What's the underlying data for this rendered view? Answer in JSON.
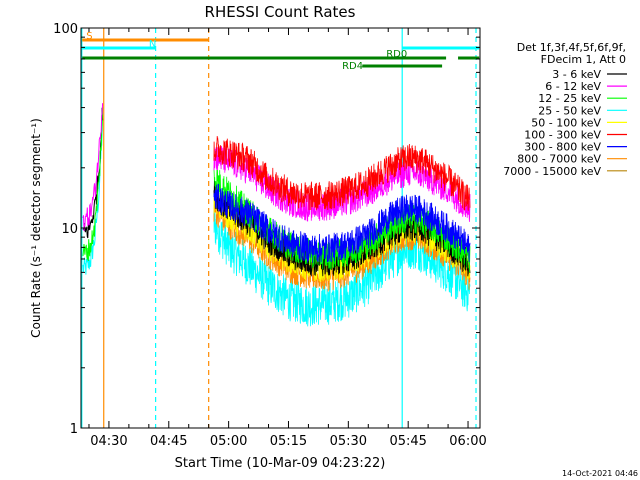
{
  "chart_data": {
    "type": "line",
    "title": "RHESSI Count Rates",
    "ylabel": "Count Rate (s⁻¹ detector segment⁻¹)",
    "xlabel": "Start Time (10-Mar-09 04:23:22)",
    "yscale": "log",
    "ylim": [
      1,
      100
    ],
    "xlim_minutes": [
      263,
      363
    ],
    "x_ticks": [
      {
        "t": 270,
        "label": "04:30"
      },
      {
        "t": 285,
        "label": "04:45"
      },
      {
        "t": 300,
        "label": "05:00"
      },
      {
        "t": 315,
        "label": "05:15"
      },
      {
        "t": 330,
        "label": "05:30"
      },
      {
        "t": 345,
        "label": "05:45"
      },
      {
        "t": 360,
        "label": "06:00"
      }
    ],
    "y_ticks": [
      {
        "v": 1,
        "label": "1"
      },
      {
        "v": 10,
        "label": "10"
      },
      {
        "v": 100,
        "label": "100"
      }
    ],
    "legend_header": [
      "Det 1f,3f,4f,5f,6f,9f,",
      "FDecim 1, Att 0"
    ],
    "legend_placement": "right",
    "series": [
      {
        "name": "3 - 6 keV",
        "color": "#000000",
        "pre": [
          [
            263.5,
            9.5
          ],
          [
            264.5,
            9.6
          ],
          [
            265.5,
            10.5
          ],
          [
            266.5,
            13
          ],
          [
            267.5,
            19
          ],
          [
            268.5,
            42
          ]
        ],
        "curve": [
          [
            296.3,
            15
          ],
          [
            300,
            12.5
          ],
          [
            305,
            10.8
          ],
          [
            310,
            8.8
          ],
          [
            315,
            7.4
          ],
          [
            320,
            6.8
          ],
          [
            325,
            6.7
          ],
          [
            330,
            7.0
          ],
          [
            335,
            7.8
          ],
          [
            340,
            9.2
          ],
          [
            343,
            9.9
          ],
          [
            345,
            10.2
          ],
          [
            348,
            10.1
          ],
          [
            350,
            9.6
          ],
          [
            355,
            8.3
          ],
          [
            359,
            7.0
          ],
          [
            360.5,
            6.5
          ]
        ]
      },
      {
        "name": "6 - 12 keV",
        "color": "#ff00ff",
        "pre": [
          [
            263.5,
            11
          ],
          [
            264.5,
            11.2
          ],
          [
            265.5,
            12.2
          ],
          [
            266.5,
            15.5
          ],
          [
            267.5,
            24
          ],
          [
            268.5,
            46
          ]
        ],
        "curve": [
          [
            296.3,
            23
          ],
          [
            300,
            21.5
          ],
          [
            305,
            19.5
          ],
          [
            310,
            15.8
          ],
          [
            315,
            13.6
          ],
          [
            320,
            12.7
          ],
          [
            325,
            12.9
          ],
          [
            330,
            13.6
          ],
          [
            335,
            15.0
          ],
          [
            340,
            17.4
          ],
          [
            343,
            18.5
          ],
          [
            345,
            19.0
          ],
          [
            348,
            18.7
          ],
          [
            350,
            17.8
          ],
          [
            355,
            15.5
          ],
          [
            359,
            13.2
          ],
          [
            360.5,
            12.5
          ]
        ]
      },
      {
        "name": "12 - 25 keV",
        "color": "#00ff00",
        "pre": [
          [
            263.5,
            7.5
          ],
          [
            264.5,
            7.6
          ],
          [
            265.5,
            8.3
          ],
          [
            266.5,
            10.5
          ],
          [
            267.5,
            17
          ],
          [
            268.5,
            40
          ]
        ],
        "curve": [
          [
            296.3,
            18
          ],
          [
            300,
            15
          ],
          [
            305,
            12
          ],
          [
            310,
            9.8
          ],
          [
            315,
            8.2
          ],
          [
            320,
            7.5
          ],
          [
            325,
            7.3
          ],
          [
            330,
            7.6
          ],
          [
            335,
            8.4
          ],
          [
            340,
            10.0
          ],
          [
            343,
            10.8
          ],
          [
            345,
            11.2
          ],
          [
            348,
            11.0
          ],
          [
            350,
            10.4
          ],
          [
            355,
            8.9
          ],
          [
            359,
            7.6
          ],
          [
            360.5,
            7.0
          ]
        ]
      },
      {
        "name": "25 - 50 keV",
        "color": "#00ffff",
        "pre": [
          [
            263.5,
            6.3
          ],
          [
            264.5,
            6.4
          ],
          [
            265.5,
            7.0
          ],
          [
            266.5,
            9.0
          ],
          [
            267.5,
            15
          ],
          [
            268.5,
            37
          ]
        ],
        "curve": [
          [
            296.3,
            10.5
          ],
          [
            300,
            8.0
          ],
          [
            305,
            6.5
          ],
          [
            310,
            5.2
          ],
          [
            315,
            4.4
          ],
          [
            320,
            4.1
          ],
          [
            325,
            4.2
          ],
          [
            330,
            4.5
          ],
          [
            335,
            5.3
          ],
          [
            340,
            6.8
          ],
          [
            343,
            7.6
          ],
          [
            345,
            8.0
          ],
          [
            348,
            7.8
          ],
          [
            350,
            7.2
          ],
          [
            355,
            6.0
          ],
          [
            359,
            5.0
          ],
          [
            360.5,
            4.7
          ]
        ]
      },
      {
        "name": "50 - 100 keV",
        "color": "#ffff00",
        "pre": [],
        "curve": [
          [
            296.3,
            14
          ],
          [
            300,
            11.5
          ],
          [
            305,
            10.0
          ],
          [
            310,
            8.2
          ],
          [
            315,
            7.0
          ],
          [
            320,
            6.4
          ],
          [
            325,
            6.3
          ],
          [
            330,
            6.6
          ],
          [
            335,
            7.4
          ],
          [
            340,
            8.8
          ],
          [
            343,
            9.5
          ],
          [
            345,
            9.8
          ],
          [
            348,
            9.6
          ],
          [
            350,
            9.1
          ],
          [
            355,
            7.9
          ],
          [
            359,
            6.7
          ],
          [
            360.5,
            6.2
          ]
        ]
      },
      {
        "name": "100 - 300 keV",
        "color": "#ff0000",
        "pre": [],
        "curve": [
          [
            296.3,
            25
          ],
          [
            300,
            24
          ],
          [
            305,
            22
          ],
          [
            310,
            17.5
          ],
          [
            315,
            15.2
          ],
          [
            320,
            14.3
          ],
          [
            325,
            14.5
          ],
          [
            330,
            15.4
          ],
          [
            335,
            17.0
          ],
          [
            340,
            20.0
          ],
          [
            343,
            21.7
          ],
          [
            345,
            22.5
          ],
          [
            348,
            22.0
          ],
          [
            350,
            20.8
          ],
          [
            355,
            17.5
          ],
          [
            359,
            14.5
          ],
          [
            360.5,
            13.5
          ]
        ]
      },
      {
        "name": "300 - 800 keV",
        "color": "#0000ff",
        "pre": [],
        "curve": [
          [
            296.3,
            14.5
          ],
          [
            300,
            13.0
          ],
          [
            305,
            11.8
          ],
          [
            310,
            9.8
          ],
          [
            315,
            8.5
          ],
          [
            320,
            7.9
          ],
          [
            325,
            7.9
          ],
          [
            330,
            8.3
          ],
          [
            335,
            9.3
          ],
          [
            340,
            11.2
          ],
          [
            343,
            12.2
          ],
          [
            345,
            12.6
          ],
          [
            348,
            12.3
          ],
          [
            350,
            11.6
          ],
          [
            355,
            9.9
          ],
          [
            359,
            8.4
          ],
          [
            360.5,
            7.8
          ]
        ]
      },
      {
        "name": "800 - 7000 keV",
        "color": "#ff8c00",
        "pre": [],
        "curve": [
          [
            296.3,
            12.5
          ],
          [
            300,
            10.5
          ],
          [
            305,
            9.0
          ],
          [
            310,
            7.4
          ],
          [
            315,
            6.3
          ],
          [
            320,
            5.8
          ],
          [
            325,
            5.7
          ],
          [
            330,
            6.0
          ],
          [
            335,
            6.8
          ],
          [
            340,
            8.2
          ],
          [
            343,
            8.9
          ],
          [
            345,
            9.2
          ],
          [
            348,
            9.0
          ],
          [
            350,
            8.5
          ],
          [
            355,
            7.3
          ],
          [
            359,
            6.2
          ],
          [
            360.5,
            5.7
          ]
        ]
      },
      {
        "name": "7000 - 15000 keV",
        "color": "#b8860b",
        "pre": [],
        "curve": []
      }
    ],
    "vlines": [
      {
        "t": 263.2,
        "color": "#00ffff",
        "style": "solid"
      },
      {
        "t": 268.7,
        "color": "#ff8c00",
        "style": "solid"
      },
      {
        "t": 281.7,
        "color": "#00ffff",
        "style": "dashed"
      },
      {
        "t": 295.0,
        "color": "#ff8c00",
        "style": "dashed"
      },
      {
        "t": 343.5,
        "color": "#00ffff",
        "style": "solid"
      },
      {
        "t": 362.0,
        "color": "#00ffff",
        "style": "dashed"
      }
    ],
    "flag_bars": [
      {
        "label": "S",
        "color": "#ff8c00",
        "t0": 263.3,
        "t1": 295.0,
        "level": 0
      },
      {
        "label": "N",
        "color": "#00ffff",
        "t0": 263.3,
        "t1": 281.7,
        "level": 1
      },
      {
        "label": "",
        "color": "#00ffff",
        "t0": 343.5,
        "t1": 362.8,
        "level": 1
      },
      {
        "label": "RD0",
        "color": "#008000",
        "t0": 263.3,
        "t1": 362.8,
        "level": 2,
        "gap": [
          354.5,
          357.5
        ]
      },
      {
        "label": "RD4",
        "color": "#008000",
        "t0": 333.5,
        "t1": 353.5,
        "level": 3
      }
    ]
  },
  "footer": {
    "timestamp": "14-Oct-2021 04:46"
  }
}
